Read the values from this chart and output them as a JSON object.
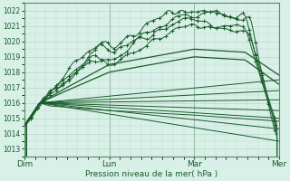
{
  "bg_color": "#cce8d8",
  "plot_bg": "#d8f0e8",
  "grid_color_major": "#b0d0c0",
  "grid_color_minor": "#c0dcd0",
  "line_color": "#1a5c2a",
  "xlabel": "Pression niveau de la mer( hPa )",
  "tick_color": "#1a5c2a",
  "ylim": [
    1012.5,
    1022.5
  ],
  "yticks": [
    1013,
    1014,
    1015,
    1016,
    1017,
    1018,
    1019,
    1020,
    1021,
    1022
  ],
  "xtick_labels": [
    "Dim",
    "Lun",
    "Mar",
    "Mer"
  ],
  "xtick_positions": [
    0,
    1,
    2,
    3
  ],
  "xlim": [
    0.0,
    3.0
  ]
}
